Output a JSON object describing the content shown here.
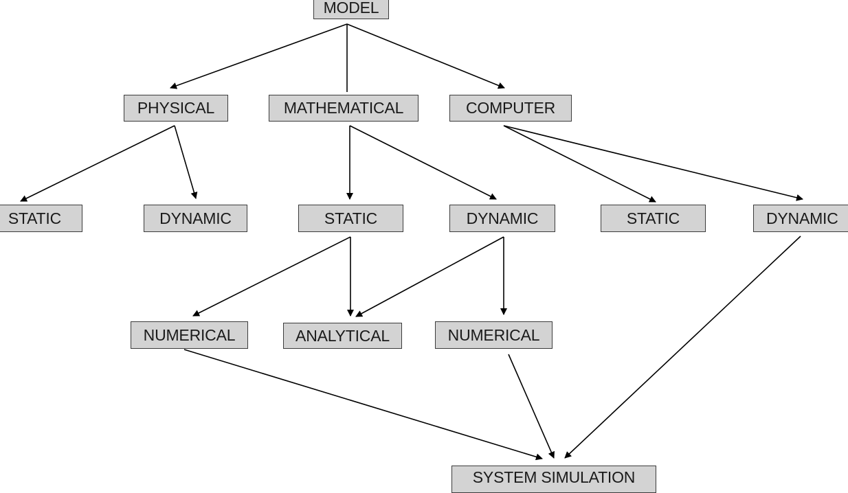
{
  "nodes": {
    "model": "MODEL",
    "physical": "PHYSICAL",
    "mathematical": "MATHEMATICAL",
    "computer": "COMPUTER",
    "physical_static": "STATIC",
    "physical_dynamic": "DYNAMIC",
    "mathematical_static": "STATIC",
    "mathematical_dynamic": "DYNAMIC",
    "computer_static": "STATIC",
    "computer_dynamic": "DYNAMIC",
    "numerical_left": "NUMERICAL",
    "analytical": "ANALYTICAL",
    "numerical_right": "NUMERICAL",
    "system_simulation": "SYSTEM SIMULATION"
  },
  "edges": [
    {
      "from": "model",
      "to": "physical",
      "arrow": true
    },
    {
      "from": "model",
      "to": "mathematical",
      "arrow": false
    },
    {
      "from": "model",
      "to": "computer",
      "arrow": true
    },
    {
      "from": "physical",
      "to": "physical_static",
      "arrow": true
    },
    {
      "from": "physical",
      "to": "physical_dynamic",
      "arrow": true
    },
    {
      "from": "mathematical",
      "to": "mathematical_static",
      "arrow": true
    },
    {
      "from": "mathematical",
      "to": "mathematical_dynamic",
      "arrow": true
    },
    {
      "from": "computer",
      "to": "computer_static",
      "arrow": true
    },
    {
      "from": "computer",
      "to": "computer_dynamic",
      "arrow": true
    },
    {
      "from": "mathematical_static",
      "to": "numerical_left",
      "arrow": true
    },
    {
      "from": "mathematical_static",
      "to": "analytical",
      "arrow": true
    },
    {
      "from": "mathematical_dynamic",
      "to": "analytical",
      "arrow": true
    },
    {
      "from": "mathematical_dynamic",
      "to": "numerical_right",
      "arrow": true
    },
    {
      "from": "numerical_left",
      "to": "system_simulation",
      "arrow": true
    },
    {
      "from": "numerical_right",
      "to": "system_simulation",
      "arrow": true
    },
    {
      "from": "computer_dynamic",
      "to": "system_simulation",
      "arrow": true
    }
  ]
}
